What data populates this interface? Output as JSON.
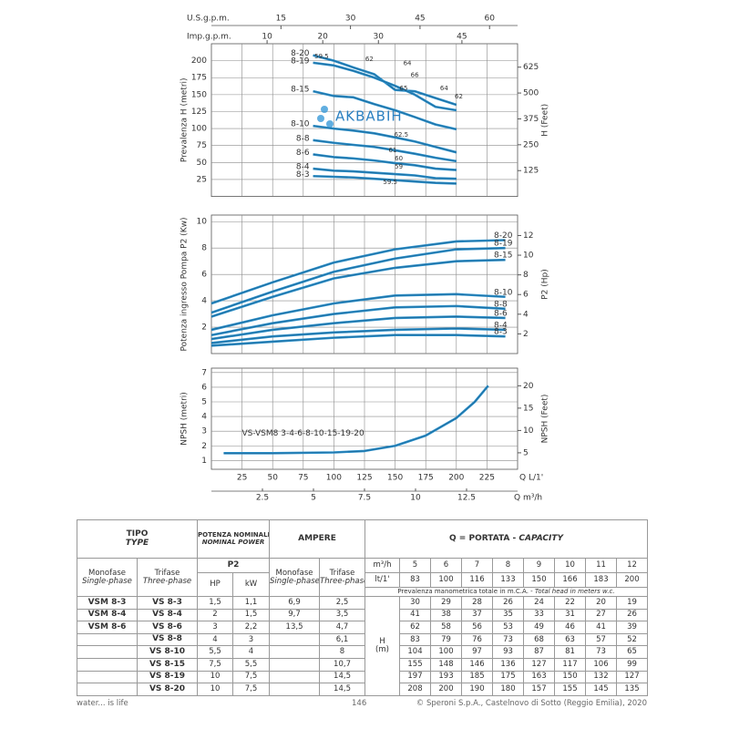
{
  "chart_data": [
    {
      "type": "line",
      "ylabel": "Prevalenza H (metri)",
      "y2label": "H (Feet)",
      "xlim": [
        0,
        250
      ],
      "ylim": [
        0,
        225
      ],
      "yticks": [
        25,
        50,
        75,
        100,
        125,
        150,
        175,
        200
      ],
      "y2lim": [
        0,
        738.2
      ],
      "y2ticks": [
        125,
        250,
        375,
        500,
        625
      ],
      "grid": true,
      "top_axes": [
        {
          "label": "U.S.g.p.m.",
          "lim": [
            0,
            66.05
          ],
          "ticks": [
            15,
            30,
            45,
            60
          ]
        },
        {
          "label": "Imp.g.p.m.",
          "lim": [
            0,
            55
          ],
          "ticks": [
            10,
            20,
            30,
            45
          ]
        }
      ],
      "x": [
        83,
        100,
        116,
        133,
        150,
        166,
        183,
        200
      ],
      "series": [
        {
          "name": "8-20",
          "color": "#2b8fc9",
          "values": [
            208,
            200,
            190,
            180,
            157,
            155,
            145,
            135
          ]
        },
        {
          "name": "8-19",
          "color": "#2b8fc9",
          "values": [
            197,
            193,
            185,
            175,
            163,
            150,
            132,
            127
          ]
        },
        {
          "name": "8-15",
          "color": "#2b8fc9",
          "values": [
            155,
            148,
            146,
            136,
            127,
            117,
            106,
            99
          ]
        },
        {
          "name": "8-10",
          "color": "#2b8fc9",
          "values": [
            104,
            100,
            97,
            93,
            87,
            81,
            73,
            65
          ]
        },
        {
          "name": "8-8",
          "color": "#2b8fc9",
          "values": [
            83,
            79,
            76,
            73,
            68,
            63,
            57,
            52
          ]
        },
        {
          "name": "8-6",
          "color": "#2b8fc9",
          "values": [
            62,
            58,
            56,
            53,
            49,
            46,
            41,
            39
          ]
        },
        {
          "name": "8-4",
          "color": "#2b8fc9",
          "values": [
            41,
            38,
            37,
            35,
            33,
            31,
            27,
            26
          ]
        },
        {
          "name": "8-3",
          "color": "#2b8fc9",
          "values": [
            30,
            29,
            28,
            26,
            24,
            22,
            20,
            19
          ]
        }
      ],
      "annotations": [
        {
          "text": "59.5",
          "x": 90,
          "y": 206
        },
        {
          "text": "62",
          "x": 129,
          "y": 202
        },
        {
          "text": "64",
          "x": 160,
          "y": 196
        },
        {
          "text": "66",
          "x": 166,
          "y": 179
        },
        {
          "text": "65",
          "x": 157,
          "y": 159
        },
        {
          "text": "64",
          "x": 190,
          "y": 159
        },
        {
          "text": "62",
          "x": 202,
          "y": 147
        },
        {
          "text": "62.5",
          "x": 155,
          "y": 91
        },
        {
          "text": "61",
          "x": 148,
          "y": 68
        },
        {
          "text": "60",
          "x": 153,
          "y": 56
        },
        {
          "text": "59",
          "x": 153,
          "y": 44
        },
        {
          "text": "59.5",
          "x": 146,
          "y": 21
        }
      ]
    },
    {
      "type": "line",
      "ylabel": "Potenza ingresso Pompa P2 (Kw)",
      "y2label": "P2 (Hp)",
      "xlim": [
        0,
        250
      ],
      "ylim": [
        0,
        10.5
      ],
      "yticks": [
        2,
        4,
        6,
        8,
        10
      ],
      "y2lim": [
        0,
        14.08
      ],
      "y2ticks": [
        2,
        4,
        6,
        8,
        10,
        12
      ],
      "grid": true,
      "x": [
        0,
        50,
        100,
        150,
        200,
        240
      ],
      "series": [
        {
          "name": "8-20",
          "color": "#2b8fc9",
          "values": [
            3.8,
            5.4,
            6.9,
            7.9,
            8.5,
            8.6
          ]
        },
        {
          "name": "8-19",
          "color": "#2b8fc9",
          "values": [
            3.1,
            4.7,
            6.2,
            7.2,
            7.9,
            8.0
          ]
        },
        {
          "name": "8-15",
          "color": "#2b8fc9",
          "values": [
            2.8,
            4.3,
            5.7,
            6.5,
            7.0,
            7.1
          ]
        },
        {
          "name": "8-10",
          "color": "#2b8fc9",
          "values": [
            1.8,
            2.9,
            3.8,
            4.4,
            4.5,
            4.3
          ]
        },
        {
          "name": "8-8",
          "color": "#2b8fc9",
          "values": [
            1.4,
            2.3,
            3.0,
            3.5,
            3.6,
            3.4
          ]
        },
        {
          "name": "8-6",
          "color": "#2b8fc9",
          "values": [
            1.1,
            1.8,
            2.3,
            2.7,
            2.8,
            2.7
          ]
        },
        {
          "name": "8-4",
          "color": "#2b8fc9",
          "values": [
            0.8,
            1.3,
            1.6,
            1.8,
            1.9,
            1.8
          ]
        },
        {
          "name": "8-3",
          "color": "#2b8fc9",
          "values": [
            0.6,
            0.9,
            1.2,
            1.4,
            1.4,
            1.3
          ]
        }
      ]
    },
    {
      "type": "line",
      "ylabel": "NPSH (metri)",
      "y2label": "NPSH (Feet)",
      "xlabel": "Q L/1'",
      "x2label": "Q m³/h",
      "xlim": [
        0,
        250
      ],
      "xticks": [
        25,
        50,
        75,
        100,
        125,
        150,
        175,
        200,
        225
      ],
      "x2lim": [
        0,
        15
      ],
      "x2ticks": [
        2.5,
        5,
        7.5,
        10,
        12.5
      ],
      "ylim": [
        0.4,
        7.3
      ],
      "yticks": [
        1,
        2,
        3,
        4,
        5,
        6,
        7
      ],
      "y2lim": [
        1.31,
        23.95
      ],
      "y2ticks": [
        5,
        10,
        15,
        20
      ],
      "grid": true,
      "x": [
        10,
        50,
        100,
        125,
        150,
        175,
        200,
        215,
        226
      ],
      "series": [
        {
          "name": "VS-VSM8 3-4-6-8-10-15-19-20",
          "color": "#2b8fc9",
          "values": [
            1.5,
            1.5,
            1.55,
            1.65,
            2.0,
            2.7,
            3.9,
            5.0,
            6.1
          ]
        }
      ]
    }
  ],
  "watermark": "AKBABIH",
  "table": {
    "header": {
      "type": "TIPO",
      "type_en": "TYPE",
      "power": "POTENZA NOMINALE",
      "power_en": "NOMINAL POWER",
      "ampere": "AMPERE",
      "capacity": "Q = PORTATA -",
      "capacity_en": "CAPACITY",
      "mono": "Monofase",
      "mono_en": "Single-phase",
      "tri": "Trifase",
      "tri_en": "Three-phase",
      "p2": "P2",
      "hp": "HP",
      "kw": "kW",
      "m3h": "m³/h",
      "lpm": "lt/1'",
      "head_note": "Prevalenza manometrica totale in m.C.A. -",
      "head_note_en": "Total head in meters w.c.",
      "h": "H",
      "h_unit": "(m)"
    },
    "flow_m3h": [
      5,
      6,
      7,
      8,
      9,
      10,
      11,
      12
    ],
    "flow_lpm": [
      83,
      100,
      116,
      133,
      150,
      166,
      183,
      200
    ],
    "rows": [
      {
        "mono": "VSM 8-3",
        "tri": "VS 8-3",
        "hp": "1,5",
        "kw": "1,1",
        "amp_mono": "6,9",
        "amp_tri": "2,5",
        "head": [
          30,
          29,
          28,
          26,
          24,
          22,
          20,
          19
        ]
      },
      {
        "mono": "VSM 8-4",
        "tri": "VS 8-4",
        "hp": "2",
        "kw": "1,5",
        "amp_mono": "9,7",
        "amp_tri": "3,5",
        "head": [
          41,
          38,
          37,
          35,
          33,
          31,
          27,
          26
        ]
      },
      {
        "mono": "VSM 8-6",
        "tri": "VS 8-6",
        "hp": "3",
        "kw": "2,2",
        "amp_mono": "13,5",
        "amp_tri": "4,7",
        "head": [
          62,
          58,
          56,
          53,
          49,
          46,
          41,
          39
        ]
      },
      {
        "tri": "VS 8-8",
        "hp": "4",
        "kw": "3",
        "amp_tri": "6,1",
        "head": [
          83,
          79,
          76,
          73,
          68,
          63,
          57,
          52
        ]
      },
      {
        "tri": "VS 8-10",
        "hp": "5,5",
        "kw": "4",
        "amp_tri": "8",
        "head": [
          104,
          100,
          97,
          93,
          87,
          81,
          73,
          65
        ]
      },
      {
        "tri": "VS 8-15",
        "hp": "7,5",
        "kw": "5,5",
        "amp_tri": "10,7",
        "head": [
          155,
          148,
          146,
          136,
          127,
          117,
          106,
          99
        ]
      },
      {
        "tri": "VS 8-19",
        "hp": "10",
        "kw": "7,5",
        "amp_tri": "14,5",
        "head": [
          197,
          193,
          185,
          175,
          163,
          150,
          132,
          127
        ]
      },
      {
        "tri": "VS 8-20",
        "hp": "10",
        "kw": "7,5",
        "amp_tri": "14,5",
        "head": [
          208,
          200,
          190,
          180,
          157,
          155,
          145,
          135
        ]
      }
    ]
  },
  "footer": {
    "left": "water... is life",
    "page": "146",
    "right": "© Speroni S.p.A., Castelnovo di Sotto (Reggio Emilia), 2020"
  }
}
